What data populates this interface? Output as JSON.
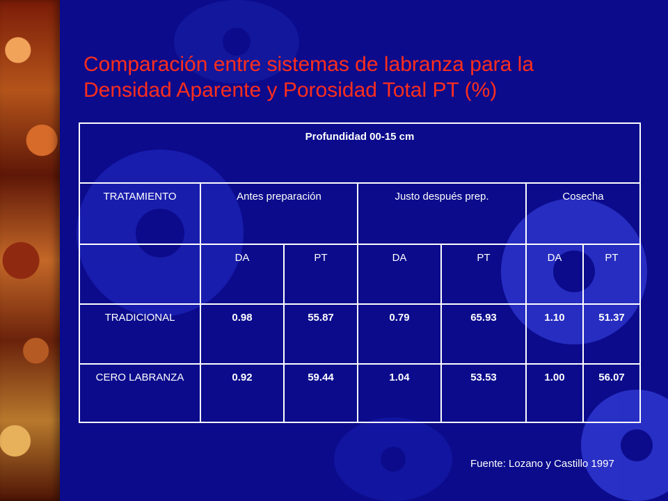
{
  "slide": {
    "title": "Comparación entre sistemas de labranza para la Densidad Aparente y Porosidad Total PT (%)",
    "source": "Fuente: Lozano y Castillo 1997"
  },
  "table": {
    "caption": "Profundidad 00-15 cm",
    "header": {
      "treatment": "TRATAMIENTO",
      "groups": [
        "Antes preparación",
        "Justo después prep.",
        "Cosecha"
      ]
    },
    "subheaders": [
      "DA",
      "PT",
      "DA",
      "PT",
      "DA",
      "PT"
    ],
    "rows": [
      {
        "treatment": "TRADICIONAL",
        "values": [
          "0.98",
          "55.87",
          "0.79",
          "65.93",
          "1.10",
          "51.37"
        ]
      },
      {
        "treatment": "CERO LABRANZA",
        "values": [
          "0.92",
          "59.44",
          "1.04",
          "53.53",
          "1.00",
          "56.07"
        ]
      }
    ]
  }
}
